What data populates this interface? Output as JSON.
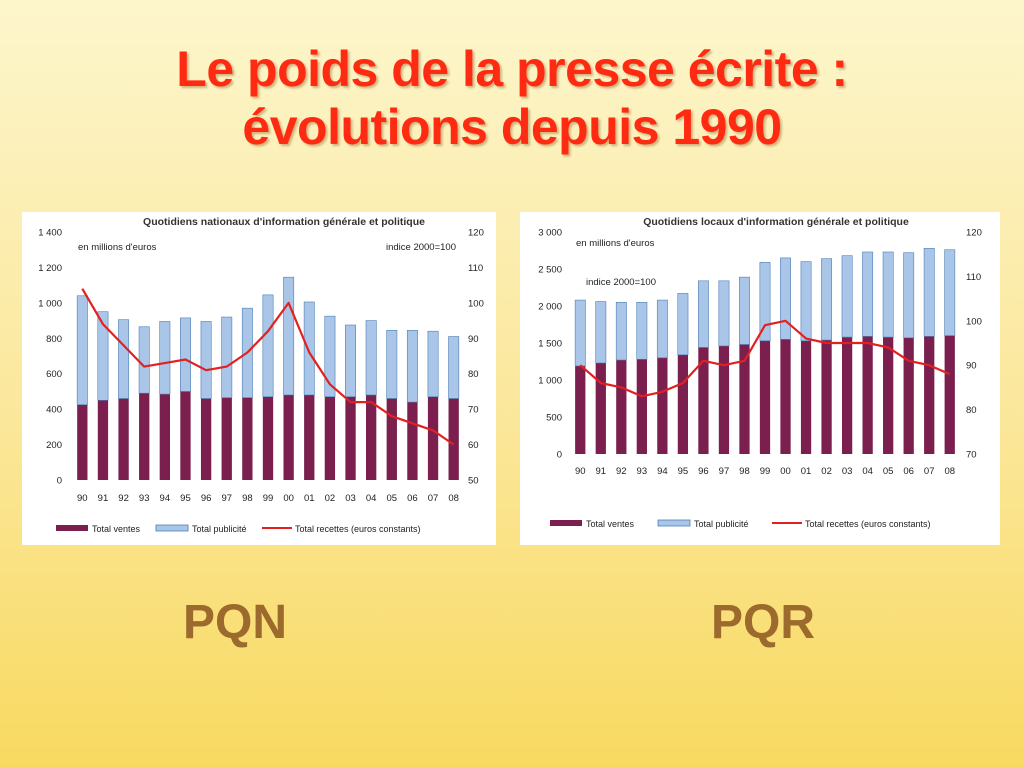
{
  "slide": {
    "title_line1": "Le poids de la presse écrite :",
    "title_line2": "évolutions depuis 1990",
    "caption_left": "PQN",
    "caption_right": "PQR"
  },
  "colors": {
    "ventes": "#7b1f4e",
    "publicite": "#a9c6e8",
    "bar_outline": "#4f7fb4",
    "recettes": "#e32020",
    "title": "#ff2a12",
    "caption": "#9c6a2c"
  },
  "chart_data": [
    {
      "type": "bar",
      "stacked": true,
      "title": "Quotidiens nationaux d'information générale et politique",
      "unit_left": "en millions d'euros",
      "unit_right": "indice 2000=100",
      "categories": [
        "90",
        "91",
        "92",
        "93",
        "94",
        "95",
        "96",
        "97",
        "98",
        "99",
        "00",
        "01",
        "02",
        "03",
        "04",
        "05",
        "06",
        "07",
        "08"
      ],
      "series": [
        {
          "name": "Total ventes",
          "type": "bar",
          "axis": "left",
          "values": [
            425,
            450,
            460,
            490,
            485,
            500,
            460,
            465,
            465,
            470,
            480,
            480,
            470,
            470,
            480,
            460,
            440,
            470,
            460
          ]
        },
        {
          "name": "Total publicité",
          "type": "bar",
          "axis": "left",
          "values": [
            615,
            500,
            445,
            375,
            410,
            415,
            435,
            455,
            505,
            575,
            665,
            525,
            455,
            405,
            420,
            385,
            405,
            370,
            350
          ]
        },
        {
          "name": "Total recettes (euros constants)",
          "type": "line",
          "axis": "right",
          "values": [
            104,
            94,
            88,
            82,
            83,
            84,
            81,
            82,
            86,
            92,
            100,
            86,
            77,
            72,
            72,
            68,
            66,
            64,
            60
          ]
        }
      ],
      "y_left": {
        "min": 0,
        "max": 1400,
        "ticks": [
          0,
          200,
          400,
          600,
          800,
          1000,
          1200,
          1400
        ],
        "tick_labels": [
          "0",
          "200",
          "400",
          "600",
          "800",
          "1 000",
          "1 200",
          "1 400"
        ]
      },
      "y_right": {
        "min": 50,
        "max": 120,
        "ticks": [
          50,
          60,
          70,
          80,
          90,
          100,
          110,
          120
        ],
        "tick_labels": [
          "50",
          "60",
          "70",
          "80",
          "90",
          "100",
          "110",
          "120"
        ]
      },
      "legend_position": "bottom"
    },
    {
      "type": "bar",
      "stacked": true,
      "title": "Quotidiens locaux d'information générale et politique",
      "unit_left": "en millions d'euros",
      "unit_right": "indice 2000=100",
      "categories": [
        "90",
        "91",
        "92",
        "93",
        "94",
        "95",
        "96",
        "97",
        "98",
        "99",
        "00",
        "01",
        "02",
        "03",
        "04",
        "05",
        "06",
        "07",
        "08"
      ],
      "series": [
        {
          "name": "Total ventes",
          "type": "bar",
          "axis": "left",
          "values": [
            1190,
            1230,
            1270,
            1280,
            1300,
            1340,
            1440,
            1460,
            1480,
            1530,
            1550,
            1530,
            1540,
            1580,
            1590,
            1580,
            1570,
            1590,
            1600
          ]
        },
        {
          "name": "Total publicité",
          "type": "bar",
          "axis": "left",
          "values": [
            890,
            830,
            780,
            770,
            780,
            830,
            900,
            880,
            910,
            1060,
            1100,
            1070,
            1100,
            1100,
            1140,
            1150,
            1150,
            1190,
            1160
          ]
        },
        {
          "name": "Total recettes (euros constants)",
          "type": "line",
          "axis": "right",
          "values": [
            90,
            86,
            85,
            83,
            84,
            86,
            91,
            90,
            91,
            99,
            100,
            96,
            95,
            95,
            95,
            94,
            91,
            90,
            88
          ]
        }
      ],
      "y_left": {
        "min": 0,
        "max": 3000,
        "ticks": [
          0,
          500,
          1000,
          1500,
          2000,
          2500,
          3000
        ],
        "tick_labels": [
          "0",
          "500",
          "1 000",
          "1 500",
          "2 000",
          "2 500",
          "3 000"
        ]
      },
      "y_right": {
        "min": 70,
        "max": 120,
        "ticks": [
          70,
          80,
          90,
          100,
          110,
          120
        ],
        "tick_labels": [
          "70",
          "80",
          "90",
          "100",
          "110",
          "120"
        ]
      },
      "legend_position": "bottom"
    }
  ]
}
